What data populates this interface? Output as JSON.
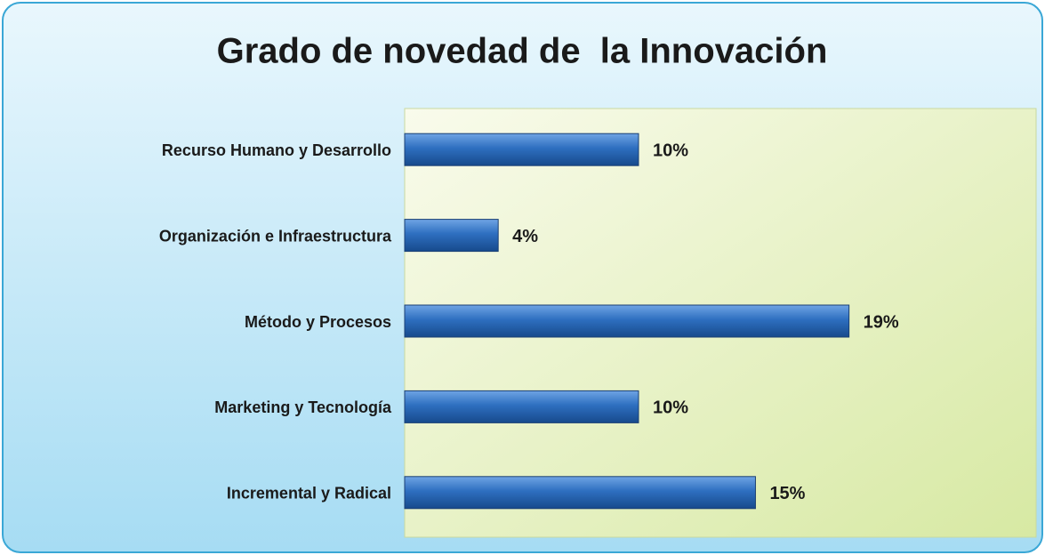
{
  "chart_data": {
    "type": "bar",
    "orientation": "horizontal",
    "title": "Grado de novedad de  la Innovación",
    "categories": [
      "Recurso Humano y Desarrollo",
      "Organización e Infraestructura",
      "Método y Procesos",
      "Marketing y Tecnología",
      "Incremental y Radical"
    ],
    "values": [
      10,
      4,
      19,
      10,
      15
    ],
    "value_labels": [
      "10%",
      "4%",
      "19%",
      "10%",
      "15%"
    ],
    "color": "#2e6fc0",
    "xlim": [
      0,
      27
    ]
  }
}
